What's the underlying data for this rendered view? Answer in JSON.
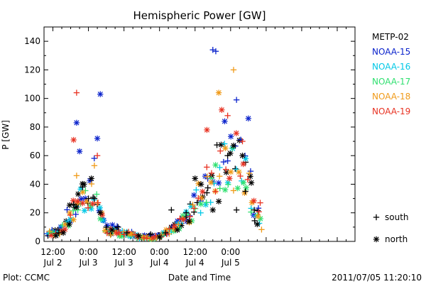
{
  "chart_data": {
    "type": "scatter",
    "title": "Hemispheric Power [GW]",
    "xlabel": "Date and Time",
    "ylabel": "P [GW]",
    "x_unit": "hours",
    "xlim": [
      -3,
      102
    ],
    "ylim": [
      0,
      150
    ],
    "y_ticks": [
      "0",
      "20",
      "40",
      "60",
      "80",
      "100",
      "120",
      "140"
    ],
    "x_ticks": [
      {
        "x": 0,
        "time": "12:00",
        "date": "Jul 2"
      },
      {
        "x": 12,
        "time": "0:00",
        "date": "Jul 3"
      },
      {
        "x": 24,
        "time": "12:00",
        "date": "Jul 3"
      },
      {
        "x": 36,
        "time": "0:00",
        "date": "Jul 4"
      },
      {
        "x": 48,
        "time": "12:00",
        "date": "Jul 4"
      },
      {
        "x": 60,
        "time": "0:00",
        "date": "Jul 5"
      }
    ],
    "credit": "Plot: CCMC",
    "timestamp": "2011/07/05 11:20:10",
    "marker_legend": {
      "south": "south",
      "north": "north"
    },
    "series": [
      {
        "name": "METP-02",
        "color": "#000000",
        "offset": 0.0,
        "amp": 1.0,
        "points": [
          [
            1,
            4,
            "n"
          ],
          [
            2,
            6,
            "s"
          ],
          [
            3.5,
            6,
            "n"
          ],
          [
            5.5,
            12,
            "n"
          ],
          [
            7,
            26,
            "s"
          ],
          [
            8,
            24,
            "n"
          ],
          [
            10,
            38,
            "s"
          ],
          [
            10.5,
            40,
            "n"
          ],
          [
            12,
            30,
            "s"
          ],
          [
            13,
            44,
            "n"
          ],
          [
            14,
            30,
            "s"
          ],
          [
            16,
            20,
            "n"
          ],
          [
            18,
            10,
            "s"
          ],
          [
            20,
            8,
            "n"
          ],
          [
            22,
            10,
            "s"
          ],
          [
            25,
            6,
            "s"
          ],
          [
            29,
            4,
            "n"
          ],
          [
            33,
            5,
            "s"
          ],
          [
            36,
            3,
            "n"
          ],
          [
            38,
            6,
            "s"
          ],
          [
            40,
            22,
            "s"
          ],
          [
            42,
            8,
            "n"
          ],
          [
            45,
            20,
            "s"
          ],
          [
            46,
            14,
            "n"
          ],
          [
            48,
            44,
            "n"
          ],
          [
            50,
            40,
            "n"
          ],
          [
            52,
            34,
            "s"
          ],
          [
            54,
            22,
            "n"
          ],
          [
            56,
            28,
            "n"
          ],
          [
            59,
            60,
            "s"
          ],
          [
            61,
            67,
            "n"
          ],
          [
            62,
            22,
            "s"
          ],
          [
            64,
            60,
            "n"
          ],
          [
            65,
            35,
            "s"
          ],
          [
            67,
            41,
            "n"
          ],
          [
            68,
            22,
            "s"
          ],
          [
            69,
            12,
            "n"
          ]
        ]
      },
      {
        "name": "NOAA-15",
        "color": "#0a22cc",
        "offset": 0.3,
        "amp": 1.15,
        "points": [
          [
            8,
            83,
            "n"
          ],
          [
            9,
            63,
            "n"
          ],
          [
            15,
            72,
            "n"
          ],
          [
            16,
            103,
            "n"
          ],
          [
            54,
            134,
            "s"
          ],
          [
            55,
            133,
            "s"
          ],
          [
            58,
            84,
            "n"
          ],
          [
            62,
            99,
            "s"
          ],
          [
            66,
            86,
            "n"
          ]
        ]
      },
      {
        "name": "NOAA-16",
        "color": "#00c8e6",
        "offset": 0.6,
        "amp": 0.95,
        "points": []
      },
      {
        "name": "NOAA-17",
        "color": "#30e070",
        "offset": 0.9,
        "amp": 0.9,
        "points": []
      },
      {
        "name": "NOAA-18",
        "color": "#f09a18",
        "offset": 1.2,
        "amp": 0.95,
        "points": [
          [
            8,
            46,
            "s"
          ],
          [
            14,
            53,
            "s"
          ],
          [
            56,
            104,
            "n"
          ],
          [
            61,
            120,
            "s"
          ]
        ]
      },
      {
        "name": "NOAA-19",
        "color": "#e83222",
        "offset": 1.5,
        "amp": 1.0,
        "points": [
          [
            8,
            104,
            "s"
          ],
          [
            7,
            71,
            "n"
          ],
          [
            15,
            60,
            "s"
          ],
          [
            52,
            78,
            "n"
          ],
          [
            57,
            92,
            "n"
          ],
          [
            59,
            88,
            "s"
          ],
          [
            64,
            70,
            "s"
          ],
          [
            70,
            27,
            "s"
          ]
        ]
      }
    ]
  }
}
